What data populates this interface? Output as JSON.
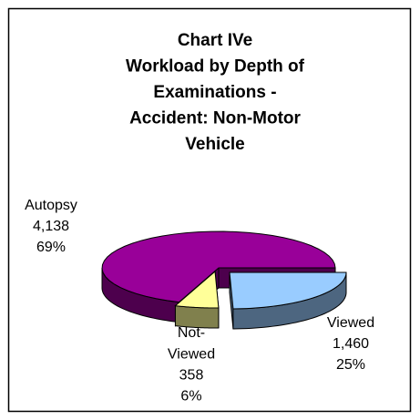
{
  "chart_data": {
    "type": "pie3d",
    "title": [
      "Chart IVe",
      "Workload by Depth of",
      "Examinations -",
      "Accident: Non-Motor",
      "Vehicle"
    ],
    "categories": [
      "Viewed",
      "Not-Viewed",
      "Autopsy"
    ],
    "values": [
      1460,
      358,
      4138
    ],
    "value_labels": [
      "1,460",
      "358",
      "4,138"
    ],
    "percents": [
      25,
      6,
      69
    ],
    "colors": [
      "#99ccff",
      "#ffff99",
      "#990099"
    ],
    "side_colors": [
      "#4d6680",
      "#80804d",
      "#4d004d"
    ]
  }
}
